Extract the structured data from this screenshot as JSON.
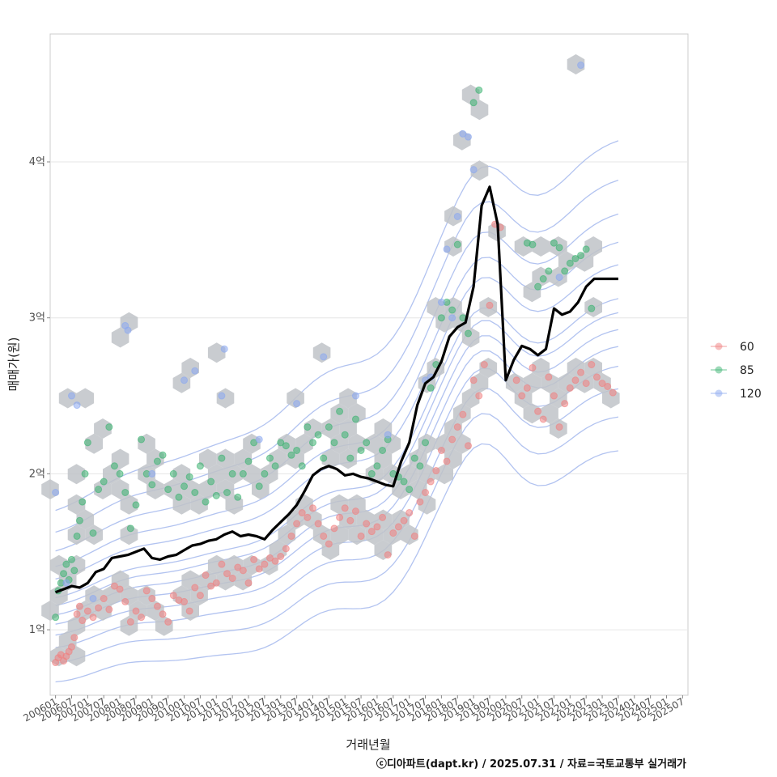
{
  "chart_data": {
    "type": "scatter",
    "xlabel": "거래년월",
    "ylabel": "매매가(원)",
    "caption": "ⓒ디아파트(dapt.kr) / 2025.07.31 / 자료=국토교통부 실거래가",
    "x_tick_labels": [
      "200601",
      "200607",
      "200701",
      "200707",
      "200801",
      "200807",
      "200901",
      "200907",
      "201001",
      "201007",
      "201101",
      "201107",
      "201201",
      "201207",
      "201301",
      "201307",
      "201401",
      "201407",
      "201501",
      "201507",
      "201601",
      "201607",
      "201701",
      "201707",
      "201801",
      "201807",
      "201901",
      "201907",
      "202001",
      "202007",
      "202101",
      "202107",
      "202201",
      "202207",
      "202301",
      "202307",
      "202401",
      "202407",
      "202501",
      "202507"
    ],
    "y_ticks": [
      {
        "value": 1,
        "label": "1억"
      },
      {
        "value": 2,
        "label": "2억"
      },
      {
        "value": 3,
        "label": "3억"
      },
      {
        "value": 4,
        "label": "4억"
      }
    ],
    "xlim_month_index": [
      -2,
      236
    ],
    "ylim_eok": [
      0.58,
      4.82
    ],
    "grid": true,
    "legend_position": "right",
    "legend": [
      {
        "label": "60",
        "color": "#f08080"
      },
      {
        "label": "85",
        "color": "#3cb371"
      },
      {
        "label": "120",
        "color": "#8aa8f0"
      }
    ],
    "line_color": "#000000",
    "hex_color": "#bfc3c8",
    "contour_color": "#9fb4ec",
    "moving_median_line": {
      "month_index": [
        0,
        3,
        6,
        9,
        12,
        15,
        18,
        21,
        24,
        27,
        30,
        33,
        36,
        39,
        42,
        45,
        48,
        51,
        54,
        57,
        60,
        63,
        66,
        69,
        72,
        75,
        78,
        81,
        84,
        87,
        90,
        93,
        96,
        99,
        102,
        105,
        108,
        111,
        114,
        117,
        120,
        123,
        126,
        129,
        132,
        135,
        138,
        141,
        144,
        147,
        150,
        153,
        156,
        159,
        162,
        165,
        168,
        171,
        174,
        177,
        180,
        183,
        186,
        189,
        192,
        195,
        198,
        201,
        204,
        207,
        210,
        213,
        216,
        219,
        222,
        225,
        228,
        231,
        234
      ],
      "value_eok": [
        1.24,
        1.26,
        1.28,
        1.27,
        1.3,
        1.37,
        1.39,
        1.46,
        1.47,
        1.48,
        1.5,
        1.52,
        1.46,
        1.45,
        1.47,
        1.48,
        1.51,
        1.54,
        1.55,
        1.57,
        1.58,
        1.61,
        1.63,
        1.6,
        1.61,
        1.6,
        1.58,
        1.64,
        1.69,
        1.74,
        1.8,
        1.89,
        1.99,
        2.03,
        2.05,
        2.03,
        1.99,
        2.0,
        1.98,
        1.97,
        1.95,
        1.93,
        1.92,
        2.08,
        2.2,
        2.44,
        2.58,
        2.62,
        2.72,
        2.88,
        2.94,
        2.97,
        3.2,
        3.72,
        3.84,
        3.6,
        2.6,
        2.73,
        2.82,
        2.8,
        2.76,
        2.8,
        3.06,
        3.02,
        3.04,
        3.1,
        3.2,
        3.25,
        3.25,
        3.25,
        3.25,
        3.25,
        3.25,
        3.25,
        3.25,
        3.25,
        3.25,
        3.25,
        3.25
      ]
    },
    "series": [
      {
        "name": "60",
        "points": [
          [
            0,
            0.79
          ],
          [
            1,
            0.82
          ],
          [
            2,
            0.84
          ],
          [
            3,
            0.8
          ],
          [
            4,
            0.83
          ],
          [
            5,
            0.86
          ],
          [
            6,
            0.89
          ],
          [
            7,
            0.95
          ],
          [
            8,
            1.1
          ],
          [
            9,
            1.15
          ],
          [
            10,
            1.06
          ],
          [
            12,
            1.12
          ],
          [
            14,
            1.08
          ],
          [
            16,
            1.14
          ],
          [
            18,
            1.2
          ],
          [
            20,
            1.13
          ],
          [
            22,
            1.28
          ],
          [
            24,
            1.26
          ],
          [
            26,
            1.18
          ],
          [
            28,
            1.05
          ],
          [
            30,
            1.12
          ],
          [
            32,
            1.08
          ],
          [
            34,
            1.25
          ],
          [
            36,
            1.2
          ],
          [
            38,
            1.15
          ],
          [
            40,
            1.1
          ],
          [
            42,
            1.05
          ],
          [
            44,
            1.22
          ],
          [
            46,
            1.19
          ],
          [
            48,
            1.18
          ],
          [
            50,
            1.12
          ],
          [
            52,
            1.27
          ],
          [
            54,
            1.22
          ],
          [
            56,
            1.35
          ],
          [
            58,
            1.28
          ],
          [
            60,
            1.3
          ],
          [
            62,
            1.42
          ],
          [
            64,
            1.36
          ],
          [
            66,
            1.33
          ],
          [
            68,
            1.4
          ],
          [
            70,
            1.38
          ],
          [
            72,
            1.3
          ],
          [
            74,
            1.45
          ],
          [
            76,
            1.39
          ],
          [
            78,
            1.42
          ],
          [
            80,
            1.46
          ],
          [
            82,
            1.44
          ],
          [
            84,
            1.47
          ],
          [
            86,
            1.52
          ],
          [
            88,
            1.6
          ],
          [
            90,
            1.68
          ],
          [
            92,
            1.75
          ],
          [
            94,
            1.72
          ],
          [
            96,
            1.78
          ],
          [
            98,
            1.68
          ],
          [
            100,
            1.6
          ],
          [
            102,
            1.55
          ],
          [
            104,
            1.65
          ],
          [
            106,
            1.72
          ],
          [
            108,
            1.78
          ],
          [
            110,
            1.7
          ],
          [
            112,
            1.76
          ],
          [
            114,
            1.6
          ],
          [
            116,
            1.68
          ],
          [
            118,
            1.63
          ],
          [
            120,
            1.66
          ],
          [
            122,
            1.72
          ],
          [
            124,
            1.48
          ],
          [
            126,
            1.62
          ],
          [
            128,
            1.66
          ],
          [
            130,
            1.7
          ],
          [
            132,
            1.75
          ],
          [
            134,
            1.6
          ],
          [
            136,
            1.82
          ],
          [
            138,
            1.88
          ],
          [
            140,
            1.95
          ],
          [
            142,
            2.02
          ],
          [
            144,
            2.15
          ],
          [
            146,
            2.08
          ],
          [
            148,
            2.22
          ],
          [
            150,
            2.3
          ],
          [
            152,
            2.38
          ],
          [
            154,
            2.18
          ],
          [
            156,
            2.6
          ],
          [
            158,
            2.5
          ],
          [
            160,
            2.7
          ],
          [
            162,
            3.08
          ],
          [
            164,
            3.6
          ],
          [
            166,
            3.58
          ],
          [
            172,
            2.6
          ],
          [
            174,
            2.5
          ],
          [
            176,
            2.55
          ],
          [
            178,
            2.68
          ],
          [
            180,
            2.4
          ],
          [
            182,
            2.35
          ],
          [
            184,
            2.62
          ],
          [
            186,
            2.5
          ],
          [
            188,
            2.3
          ],
          [
            190,
            2.45
          ],
          [
            192,
            2.55
          ],
          [
            194,
            2.6
          ],
          [
            196,
            2.65
          ],
          [
            198,
            2.58
          ],
          [
            200,
            2.7
          ],
          [
            202,
            2.62
          ],
          [
            204,
            2.58
          ],
          [
            206,
            2.56
          ],
          [
            208,
            2.52
          ]
        ]
      },
      {
        "name": "85",
        "points": [
          [
            0,
            1.08
          ],
          [
            1,
            1.25
          ],
          [
            2,
            1.3
          ],
          [
            3,
            1.36
          ],
          [
            4,
            1.42
          ],
          [
            5,
            1.32
          ],
          [
            6,
            1.45
          ],
          [
            7,
            1.38
          ],
          [
            8,
            1.6
          ],
          [
            9,
            1.7
          ],
          [
            10,
            1.82
          ],
          [
            11,
            2.0
          ],
          [
            12,
            2.2
          ],
          [
            14,
            1.62
          ],
          [
            16,
            1.9
          ],
          [
            18,
            1.95
          ],
          [
            20,
            2.3
          ],
          [
            22,
            2.05
          ],
          [
            24,
            2.0
          ],
          [
            26,
            1.88
          ],
          [
            28,
            1.65
          ],
          [
            30,
            1.8
          ],
          [
            32,
            2.22
          ],
          [
            34,
            2.0
          ],
          [
            36,
            1.93
          ],
          [
            38,
            2.08
          ],
          [
            40,
            2.12
          ],
          [
            42,
            1.9
          ],
          [
            44,
            2.0
          ],
          [
            46,
            1.85
          ],
          [
            48,
            1.92
          ],
          [
            50,
            1.98
          ],
          [
            52,
            1.88
          ],
          [
            54,
            2.05
          ],
          [
            56,
            1.82
          ],
          [
            58,
            1.95
          ],
          [
            60,
            1.86
          ],
          [
            62,
            2.1
          ],
          [
            64,
            1.88
          ],
          [
            66,
            2.0
          ],
          [
            68,
            1.85
          ],
          [
            70,
            2.0
          ],
          [
            72,
            2.08
          ],
          [
            74,
            2.2
          ],
          [
            76,
            1.92
          ],
          [
            78,
            2.0
          ],
          [
            80,
            2.1
          ],
          [
            82,
            2.05
          ],
          [
            84,
            2.2
          ],
          [
            86,
            2.18
          ],
          [
            88,
            2.12
          ],
          [
            90,
            2.15
          ],
          [
            92,
            2.05
          ],
          [
            94,
            2.3
          ],
          [
            96,
            2.2
          ],
          [
            98,
            2.25
          ],
          [
            100,
            2.1
          ],
          [
            102,
            2.3
          ],
          [
            104,
            2.2
          ],
          [
            106,
            2.4
          ],
          [
            108,
            2.25
          ],
          [
            110,
            2.1
          ],
          [
            112,
            2.35
          ],
          [
            114,
            2.15
          ],
          [
            116,
            2.2
          ],
          [
            118,
            2.0
          ],
          [
            120,
            2.05
          ],
          [
            122,
            2.15
          ],
          [
            124,
            2.22
          ],
          [
            126,
            2.0
          ],
          [
            128,
            1.98
          ],
          [
            130,
            1.95
          ],
          [
            132,
            1.9
          ],
          [
            134,
            2.1
          ],
          [
            136,
            2.05
          ],
          [
            138,
            2.2
          ],
          [
            140,
            2.55
          ],
          [
            142,
            2.7
          ],
          [
            144,
            3.0
          ],
          [
            146,
            3.1
          ],
          [
            148,
            3.05
          ],
          [
            150,
            3.47
          ],
          [
            152,
            3.0
          ],
          [
            154,
            2.9
          ],
          [
            156,
            4.38
          ],
          [
            158,
            4.46
          ],
          [
            176,
            3.48
          ],
          [
            178,
            3.47
          ],
          [
            180,
            3.2
          ],
          [
            182,
            3.25
          ],
          [
            184,
            3.3
          ],
          [
            186,
            3.48
          ],
          [
            188,
            3.45
          ],
          [
            190,
            3.3
          ],
          [
            192,
            3.35
          ],
          [
            194,
            3.38
          ],
          [
            196,
            3.4
          ],
          [
            198,
            3.44
          ],
          [
            200,
            3.06
          ]
        ]
      },
      {
        "name": "120",
        "points": [
          [
            0,
            1.88
          ],
          [
            4,
            1.3
          ],
          [
            6,
            2.5
          ],
          [
            8,
            2.44
          ],
          [
            14,
            1.2
          ],
          [
            26,
            2.95
          ],
          [
            27,
            2.92
          ],
          [
            36,
            2.0
          ],
          [
            48,
            2.6
          ],
          [
            52,
            2.66
          ],
          [
            62,
            2.5
          ],
          [
            63,
            2.8
          ],
          [
            76,
            2.22
          ],
          [
            90,
            2.45
          ],
          [
            100,
            2.75
          ],
          [
            112,
            2.5
          ],
          [
            124,
            2.25
          ],
          [
            138,
            2.6
          ],
          [
            140,
            2.62
          ],
          [
            144,
            3.1
          ],
          [
            146,
            3.44
          ],
          [
            148,
            3.0
          ],
          [
            150,
            3.65
          ],
          [
            152,
            4.18
          ],
          [
            154,
            4.16
          ],
          [
            156,
            3.95
          ],
          [
            188,
            3.26
          ],
          [
            196,
            4.62
          ]
        ]
      }
    ]
  }
}
